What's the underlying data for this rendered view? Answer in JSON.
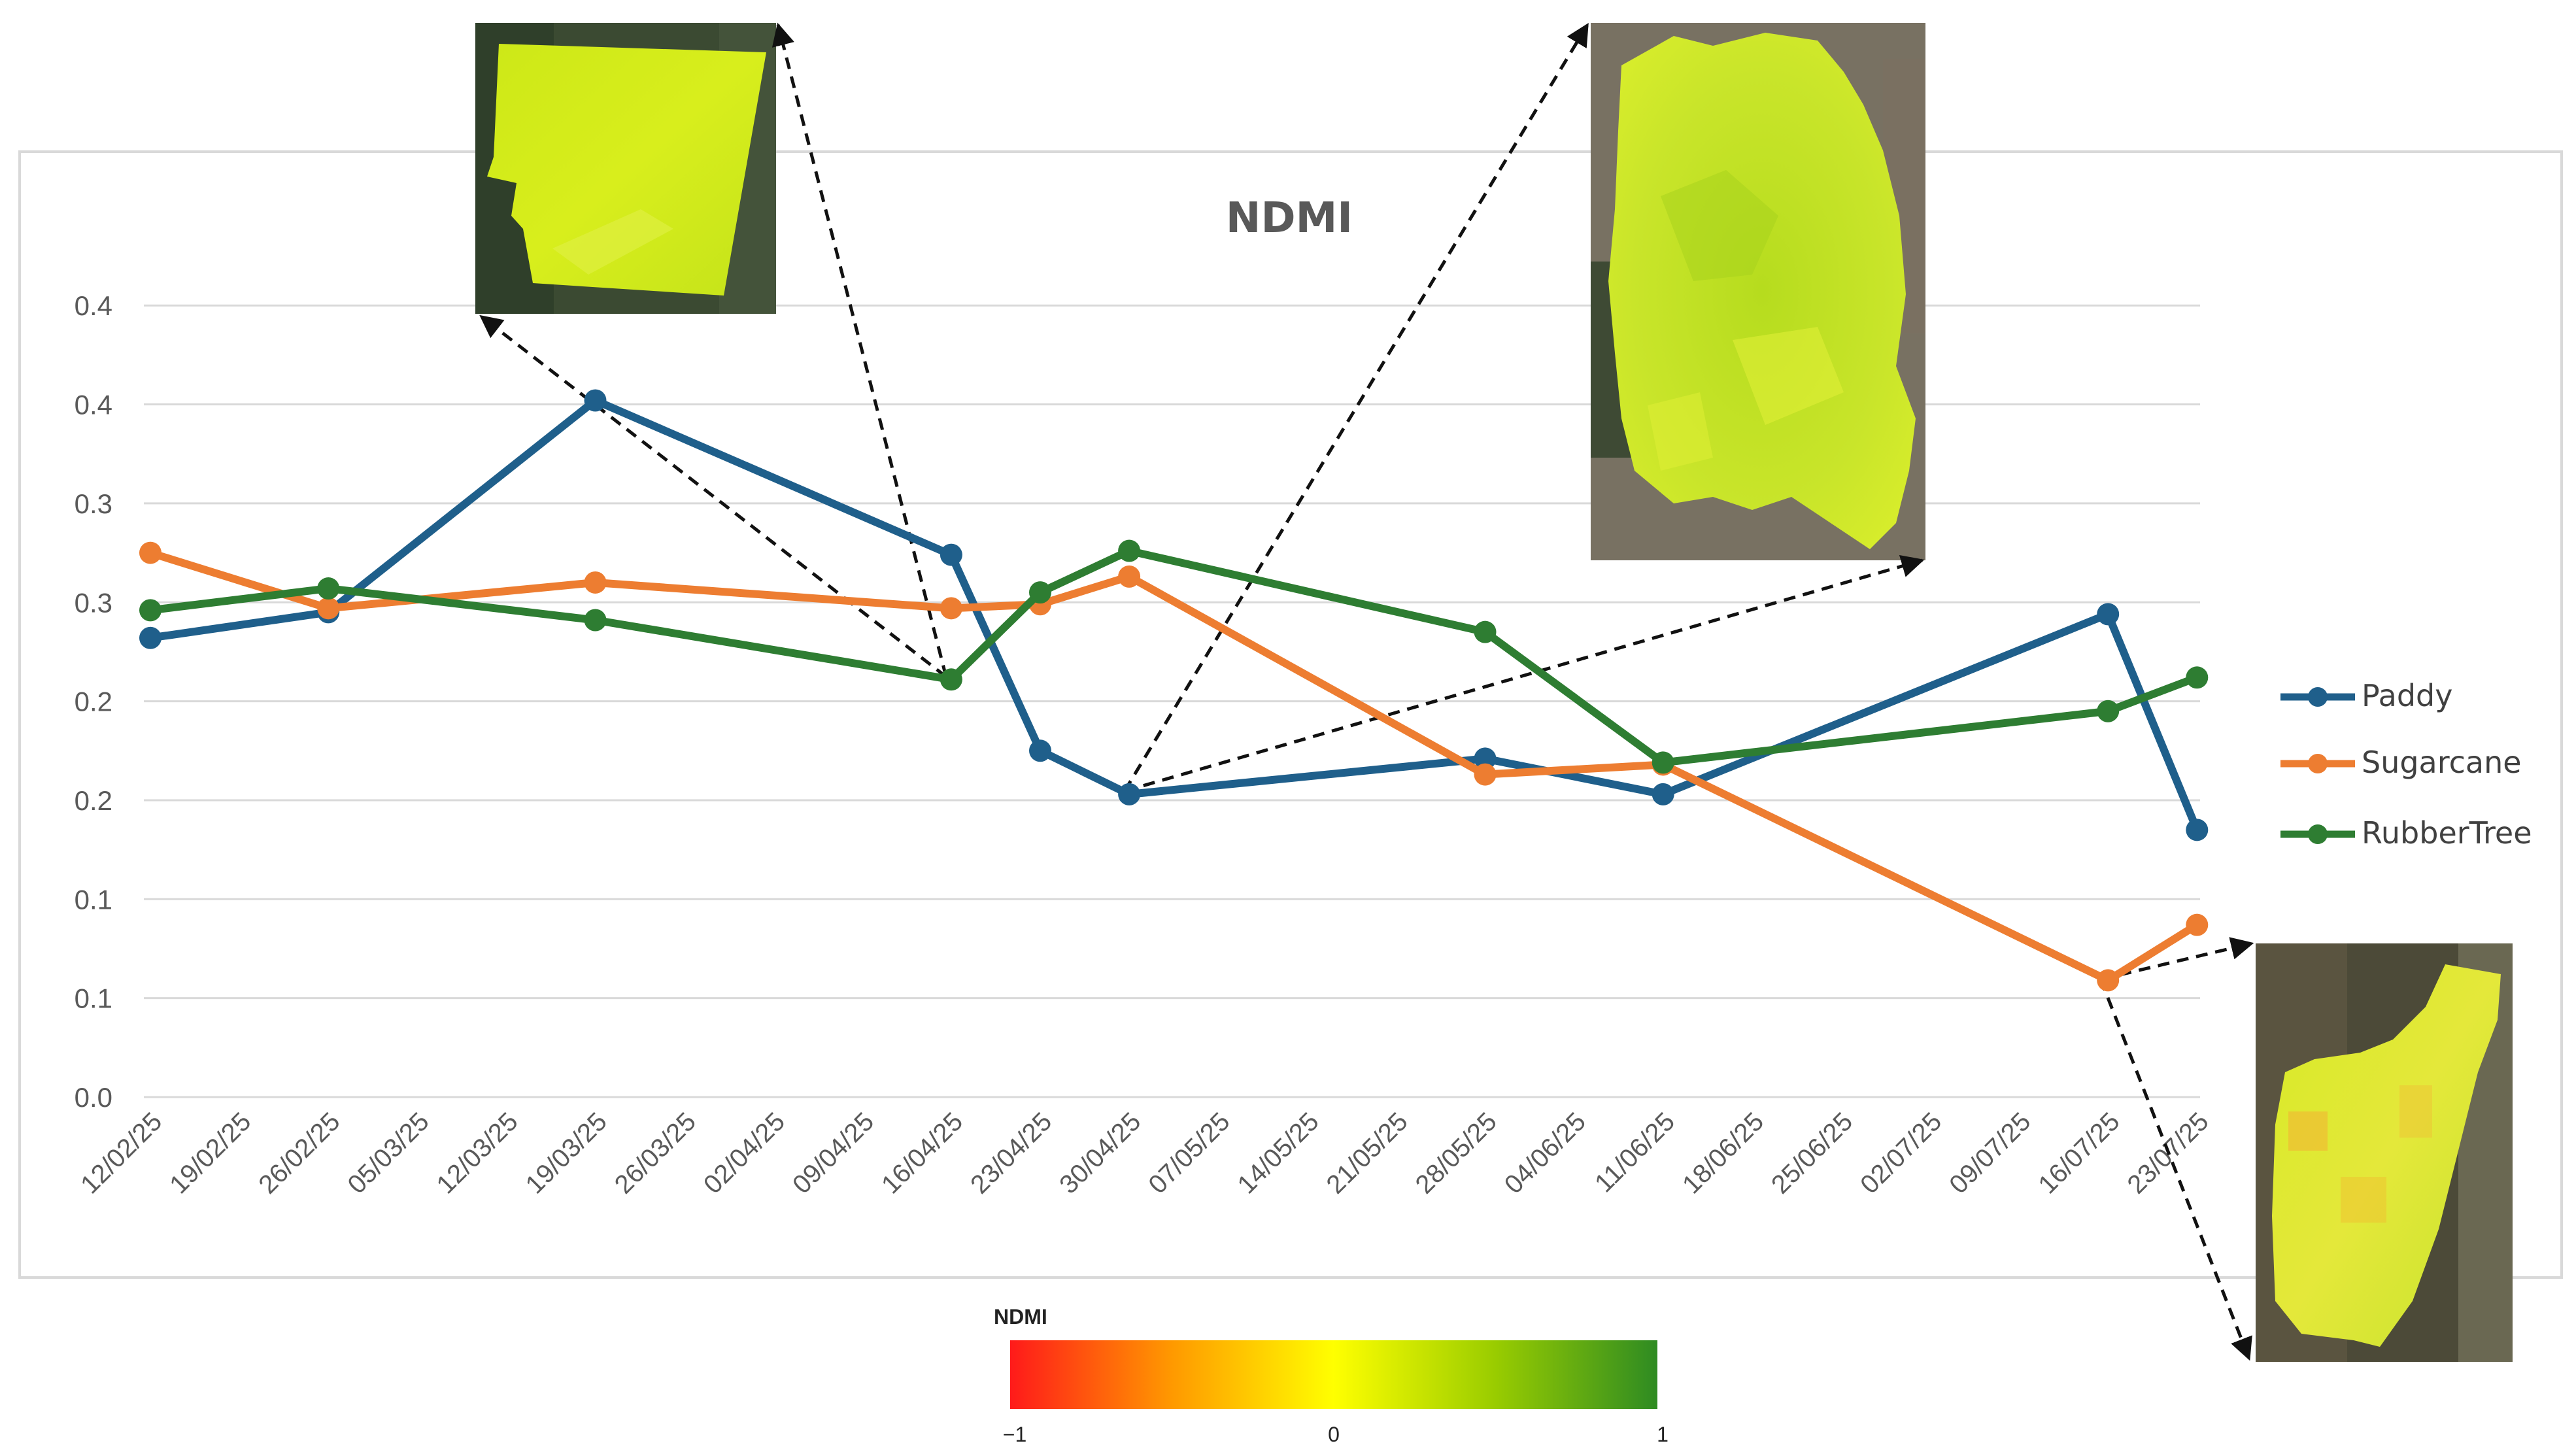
{
  "chart_data": {
    "type": "line",
    "title": "NDMI",
    "xlabel": "",
    "ylabel": "",
    "x_ticks": [
      "12/02/25",
      "19/02/25",
      "26/02/25",
      "05/03/25",
      "12/03/25",
      "19/03/25",
      "26/03/25",
      "02/04/25",
      "09/04/25",
      "16/04/25",
      "23/04/25",
      "30/04/25",
      "07/05/25",
      "14/05/25",
      "21/05/25",
      "28/05/25",
      "04/06/25",
      "11/06/25",
      "18/06/25",
      "25/06/25",
      "02/07/25",
      "09/07/25",
      "16/07/25",
      "23/07/25"
    ],
    "y_tick_labels": [
      "0.0",
      "0.1",
      "0.1",
      "0.2",
      "0.2",
      "0.3",
      "0.3",
      "0.4",
      "0.4"
    ],
    "ylim": [
      0.0,
      0.4
    ],
    "grid": true,
    "legend_position": "right",
    "series": [
      {
        "name": "Paddy",
        "color": "#1f5f8b",
        "points": [
          [
            "12/02/25",
            0.232
          ],
          [
            "26/02/25",
            0.245
          ],
          [
            "19/03/25",
            0.352
          ],
          [
            "16/04/25",
            0.274
          ],
          [
            "23/04/25",
            0.175
          ],
          [
            "30/04/25",
            0.153
          ],
          [
            "28/05/25",
            0.171
          ],
          [
            "11/06/25",
            0.153
          ],
          [
            "16/07/25",
            0.244
          ],
          [
            "23/07/25",
            0.135
          ]
        ]
      },
      {
        "name": "Sugarcane",
        "color": "#ed7d31",
        "points": [
          [
            "12/02/25",
            0.275
          ],
          [
            "26/02/25",
            0.247
          ],
          [
            "19/03/25",
            0.26
          ],
          [
            "16/04/25",
            0.247
          ],
          [
            "23/04/25",
            0.249
          ],
          [
            "30/04/25",
            0.263
          ],
          [
            "28/05/25",
            0.163
          ],
          [
            "11/06/25",
            0.168
          ],
          [
            "16/07/25",
            0.059
          ],
          [
            "23/07/25",
            0.087
          ]
        ]
      },
      {
        "name": "RubberTree",
        "color": "#2e7d32",
        "points": [
          [
            "12/02/25",
            0.246
          ],
          [
            "26/02/25",
            0.257
          ],
          [
            "19/03/25",
            0.241
          ],
          [
            "16/04/25",
            0.211
          ],
          [
            "23/04/25",
            0.255
          ],
          [
            "30/04/25",
            0.276
          ],
          [
            "28/05/25",
            0.235
          ],
          [
            "11/06/25",
            0.169
          ],
          [
            "16/07/25",
            0.195
          ],
          [
            "23/07/25",
            0.212
          ]
        ]
      }
    ],
    "colorbar": {
      "label": "NDMI",
      "min_label": "−1",
      "mid_label": "0",
      "max_label": "1",
      "colors": [
        "#ff1a1a",
        "#ff9900",
        "#ffff00",
        "#99cc00",
        "#2e8b22"
      ]
    }
  },
  "insets": [
    {
      "name": "field-paddy-inset",
      "points_to": "16/04/25"
    },
    {
      "name": "field-rubbertree-inset",
      "points_to": "30/04/25"
    },
    {
      "name": "field-sugarcane-inset",
      "points_to": "16/07/25"
    }
  ]
}
